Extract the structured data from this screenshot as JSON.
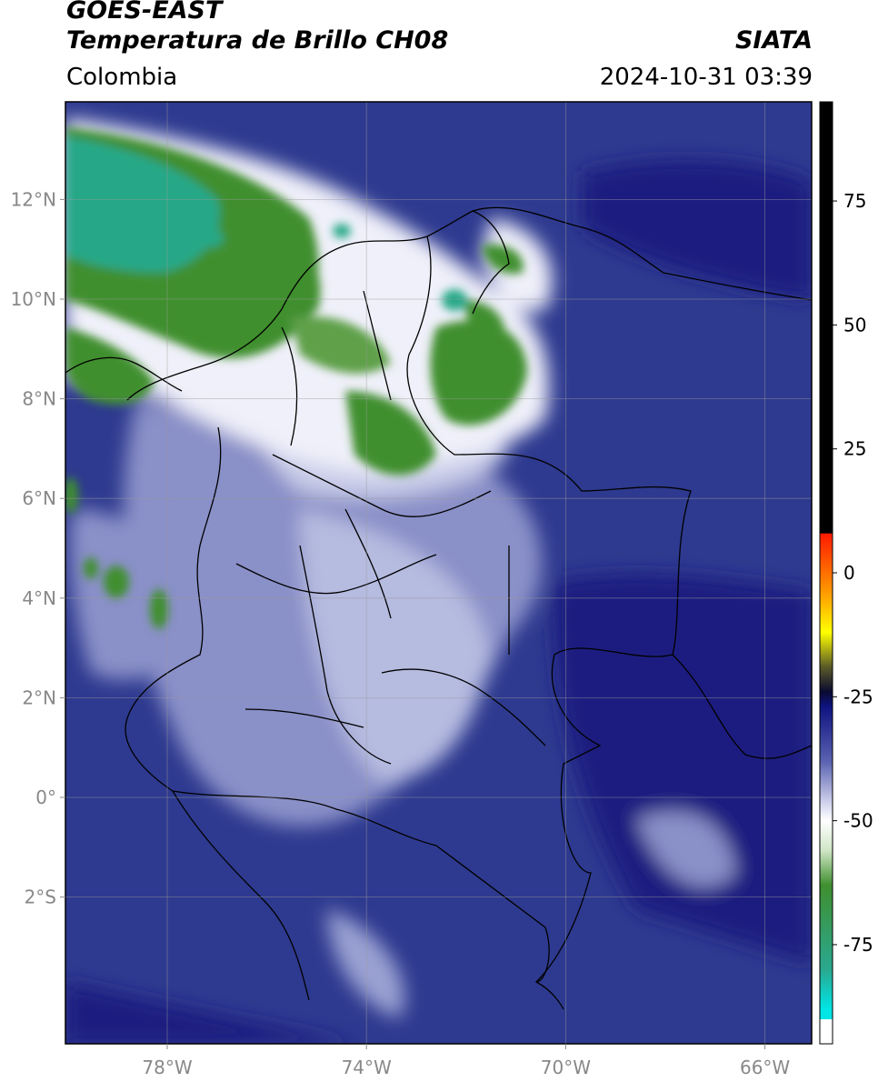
{
  "header": {
    "satellite": "GOES-EAST",
    "product": "Temperatura de Brillo CH08",
    "organization": "SIATA",
    "region": "Colombia",
    "datetime": "2024-10-31 03:39"
  },
  "map": {
    "lon_range": [
      -80,
      -65
    ],
    "lat_range": [
      -5,
      14
    ],
    "lon_ticks": [
      {
        "value": -78,
        "label": "78°W"
      },
      {
        "value": -74,
        "label": "74°W"
      },
      {
        "value": -70,
        "label": "70°W"
      },
      {
        "value": -66,
        "label": "66°W"
      }
    ],
    "lat_ticks": [
      {
        "value": 12,
        "label": "12°N"
      },
      {
        "value": 10,
        "label": "10°N"
      },
      {
        "value": 8,
        "label": "8°N"
      },
      {
        "value": 6,
        "label": "6°N"
      },
      {
        "value": 4,
        "label": "4°N"
      },
      {
        "value": 2,
        "label": "2°N"
      },
      {
        "value": 0,
        "label": "0°"
      },
      {
        "value": -2,
        "label": "2°S"
      }
    ],
    "gridlines": true,
    "colors": {
      "background": "#2e3a8f",
      "deep_blue": "#1c1f80",
      "light_band": "#aab0d8",
      "white": "#ffffff",
      "green": "#3f8f2f",
      "teal": "#22b28c"
    }
  },
  "colorbar": {
    "range": [
      -95,
      95
    ],
    "ticks": [
      {
        "value": 75,
        "label": "75"
      },
      {
        "value": 50,
        "label": "50"
      },
      {
        "value": 25,
        "label": "25"
      },
      {
        "value": 0,
        "label": "0"
      },
      {
        "value": -25,
        "label": "-25"
      },
      {
        "value": -50,
        "label": "-50"
      },
      {
        "value": -75,
        "label": "-75"
      }
    ],
    "stops": [
      {
        "value": 95,
        "color": "#000000"
      },
      {
        "value": 8,
        "color": "#000000"
      },
      {
        "value": 7.9,
        "color": "#ff1a00"
      },
      {
        "value": -4,
        "color": "#ff9a00"
      },
      {
        "value": -12,
        "color": "#ffff00"
      },
      {
        "value": -19,
        "color": "#5a5a28"
      },
      {
        "value": -24,
        "color": "#0a0a30"
      },
      {
        "value": -27,
        "color": "#0e1380"
      },
      {
        "value": -38,
        "color": "#5a62b0"
      },
      {
        "value": -47,
        "color": "#d8daf0"
      },
      {
        "value": -50,
        "color": "#ffffff"
      },
      {
        "value": -56,
        "color": "#cfe6c6"
      },
      {
        "value": -63,
        "color": "#3f8f2f"
      },
      {
        "value": -80,
        "color": "#2aa890"
      },
      {
        "value": -88,
        "color": "#00e5e5"
      },
      {
        "value": -90,
        "color": "#00e5e5"
      },
      {
        "value": -90.1,
        "color": "#ffffff"
      },
      {
        "value": -95,
        "color": "#ffffff"
      }
    ]
  }
}
